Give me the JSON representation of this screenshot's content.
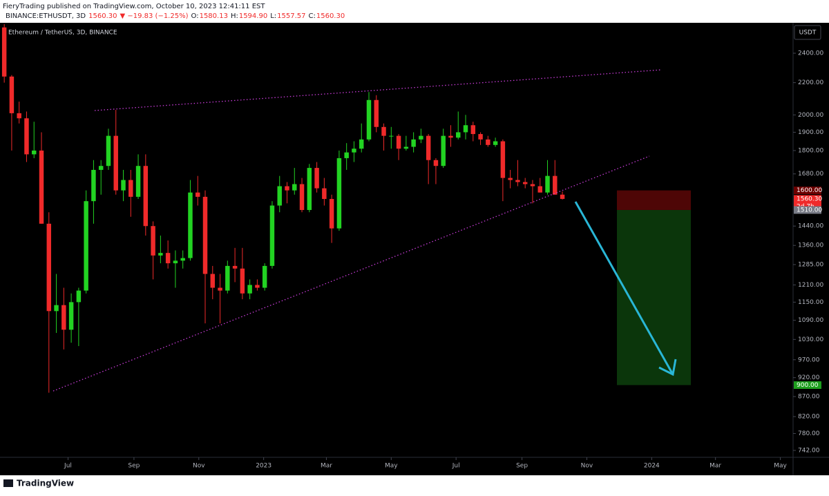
{
  "header": {
    "publisher": "FieryTrading published on TradingView.com, October 10, 2023 12:41:11 EST",
    "symbol": "BINANCE:ETHUSDT, 3D",
    "price": "1560.30",
    "change": "▼ −19.83 (−1.25%)",
    "ohlc": [
      {
        "label": "O:",
        "value": "1580.13"
      },
      {
        "label": "H:",
        "value": "1594.90"
      },
      {
        "label": "L:",
        "value": "1557.57"
      },
      {
        "label": "C:",
        "value": "1560.30"
      }
    ],
    "currency": "USDT",
    "logo": "TradingView"
  },
  "chart_data": {
    "type": "candlestick",
    "title": "Ethereum / TetherUS, 3D, BINANCE",
    "x": [
      "2022-05-02",
      "2022-05-09",
      "2022-05-16",
      "2022-05-23",
      "2022-05-30",
      "2022-06-06",
      "2022-06-13",
      "2022-06-20",
      "2022-06-27",
      "2022-07-04",
      "2022-07-11",
      "2022-07-18",
      "2022-07-25",
      "2022-08-01",
      "2022-08-08",
      "2022-08-15",
      "2022-08-22",
      "2022-08-29",
      "2022-09-05",
      "2022-09-12",
      "2022-09-19",
      "2022-09-26",
      "2022-10-03",
      "2022-10-10",
      "2022-10-17",
      "2022-10-24",
      "2022-10-31",
      "2022-11-07",
      "2022-11-14",
      "2022-11-21",
      "2022-11-28",
      "2022-12-05",
      "2022-12-12",
      "2022-12-19",
      "2022-12-26",
      "2023-01-02",
      "2023-01-09",
      "2023-01-16",
      "2023-01-23",
      "2023-01-30",
      "2023-02-06",
      "2023-02-13",
      "2023-02-20",
      "2023-02-27",
      "2023-03-06",
      "2023-03-13",
      "2023-03-20",
      "2023-03-27",
      "2023-04-03",
      "2023-04-10",
      "2023-04-17",
      "2023-04-24",
      "2023-05-01",
      "2023-05-08",
      "2023-05-15",
      "2023-05-22",
      "2023-05-29",
      "2023-06-05",
      "2023-06-12",
      "2023-06-19",
      "2023-06-26",
      "2023-07-03",
      "2023-07-10",
      "2023-07-17",
      "2023-07-24",
      "2023-07-31",
      "2023-08-07",
      "2023-08-14",
      "2023-08-21",
      "2023-08-28",
      "2023-09-04",
      "2023-09-11",
      "2023-09-18",
      "2023-09-25",
      "2023-10-02",
      "2023-10-09"
    ],
    "open": [
      2590,
      2240,
      2010,
      1980,
      1780,
      1800,
      1450,
      1120,
      1140,
      1060,
      1150,
      1190,
      1550,
      1700,
      1720,
      1880,
      1600,
      1650,
      1570,
      1720,
      1440,
      1320,
      1330,
      1290,
      1300,
      1310,
      1590,
      1570,
      1250,
      1200,
      1190,
      1280,
      1270,
      1180,
      1210,
      1200,
      1280,
      1530,
      1620,
      1600,
      1630,
      1510,
      1710,
      1610,
      1560,
      1430,
      1760,
      1790,
      1810,
      1860,
      2090,
      1930,
      1880,
      1880,
      1810,
      1820,
      1860,
      1880,
      1750,
      1720,
      1880,
      1870,
      1900,
      1940,
      1890,
      1860,
      1830,
      1850,
      1660,
      1650,
      1640,
      1630,
      1620,
      1590,
      1670,
      1580.13
    ],
    "high": [
      2615,
      2250,
      2080,
      2020,
      1960,
      1900,
      1500,
      1250,
      1200,
      1180,
      1200,
      1600,
      1750,
      1750,
      1920,
      2030,
      1700,
      1700,
      1780,
      1780,
      1460,
      1400,
      1380,
      1340,
      1340,
      1650,
      1670,
      1600,
      1280,
      1250,
      1300,
      1350,
      1350,
      1230,
      1230,
      1290,
      1550,
      1670,
      1640,
      1710,
      1660,
      1730,
      1740,
      1660,
      1580,
      1800,
      1840,
      1850,
      1950,
      2140,
      2120,
      1950,
      1930,
      1890,
      1880,
      1900,
      1920,
      1890,
      1760,
      1920,
      1940,
      2020,
      2000,
      1960,
      1900,
      1880,
      1870,
      1860,
      1700,
      1750,
      1660,
      1650,
      1660,
      1750,
      1750,
      1594.9
    ],
    "low": [
      2200,
      1800,
      1950,
      1740,
      1760,
      1450,
      880,
      1050,
      1000,
      1020,
      1010,
      1180,
      1450,
      1580,
      1700,
      1580,
      1550,
      1480,
      1560,
      1400,
      1230,
      1290,
      1270,
      1200,
      1270,
      1300,
      1530,
      1080,
      1160,
      1080,
      1180,
      1220,
      1160,
      1160,
      1190,
      1190,
      1270,
      1500,
      1540,
      1580,
      1500,
      1500,
      1590,
      1530,
      1370,
      1420,
      1700,
      1740,
      1790,
      1850,
      1900,
      1800,
      1810,
      1750,
      1800,
      1790,
      1840,
      1630,
      1630,
      1710,
      1820,
      1860,
      1860,
      1850,
      1830,
      1820,
      1820,
      1550,
      1610,
      1620,
      1610,
      1540,
      1590,
      1580,
      1580,
      1557.57
    ],
    "close": [
      2240,
      2010,
      1980,
      1780,
      1800,
      1450,
      1120,
      1140,
      1060,
      1150,
      1190,
      1550,
      1700,
      1720,
      1880,
      1600,
      1650,
      1570,
      1720,
      1440,
      1320,
      1330,
      1290,
      1300,
      1310,
      1590,
      1570,
      1250,
      1200,
      1190,
      1280,
      1270,
      1180,
      1210,
      1200,
      1280,
      1530,
      1620,
      1600,
      1630,
      1510,
      1710,
      1610,
      1560,
      1430,
      1760,
      1790,
      1810,
      1860,
      2090,
      1930,
      1880,
      1880,
      1810,
      1820,
      1860,
      1880,
      1750,
      1720,
      1880,
      1870,
      1900,
      1940,
      1890,
      1860,
      1830,
      1850,
      1660,
      1650,
      1640,
      1630,
      1620,
      1590,
      1670,
      1580.13,
      1560.3
    ],
    "up_color": "#22d322",
    "down_color": "#f02a2a",
    "xlim": [
      "2022-04-28",
      "2024-05-13"
    ],
    "xticks": [
      {
        "value": "2022-07-01",
        "label": "Jul"
      },
      {
        "value": "2022-09-01",
        "label": "Sep"
      },
      {
        "value": "2022-11-01",
        "label": "Nov"
      },
      {
        "value": "2023-01-01",
        "label": "2023"
      },
      {
        "value": "2023-03-01",
        "label": "Mar"
      },
      {
        "value": "2023-05-01",
        "label": "May"
      },
      {
        "value": "2023-07-01",
        "label": "Jul"
      },
      {
        "value": "2023-09-01",
        "label": "Sep"
      },
      {
        "value": "2023-11-01",
        "label": "Nov"
      },
      {
        "value": "2024-01-01",
        "label": "2024"
      },
      {
        "value": "2024-03-01",
        "label": "Mar"
      },
      {
        "value": "2024-05-01",
        "label": "May"
      }
    ],
    "ylim": [
      727,
      2615
    ],
    "log_scale": true,
    "grid": false,
    "yticks": [
      {
        "value": 2400,
        "label": "2400.00"
      },
      {
        "value": 2200,
        "label": "2200.00"
      },
      {
        "value": 2000,
        "label": "2000.00"
      },
      {
        "value": 1900,
        "label": "1900.00"
      },
      {
        "value": 1800,
        "label": "1800.00"
      },
      {
        "value": 1680,
        "label": "1680.00"
      },
      {
        "value": 1440,
        "label": "1440.00"
      },
      {
        "value": 1360,
        "label": "1360.00"
      },
      {
        "value": 1285,
        "label": "1285.00"
      },
      {
        "value": 1210,
        "label": "1210.00"
      },
      {
        "value": 1150,
        "label": "1150.00"
      },
      {
        "value": 1090,
        "label": "1090.00"
      },
      {
        "value": 1030,
        "label": "1030.00"
      },
      {
        "value": 970,
        "label": "970.00"
      },
      {
        "value": 920,
        "label": "920.00"
      },
      {
        "value": 870,
        "label": "870.00"
      },
      {
        "value": 820,
        "label": "820.00"
      },
      {
        "value": 780,
        "label": "780.00"
      },
      {
        "value": 742,
        "label": "742.00"
      }
    ],
    "position": {
      "stop": 1600,
      "entry": 1510,
      "target": 900,
      "stop_color": "#4e0606",
      "target_color": "#0b360b"
    },
    "price_labels": [
      {
        "value": 1600,
        "label": "1600.00",
        "color": "#6e0000"
      },
      {
        "value": 1560.3,
        "label": "1560.30",
        "color": "#f02a2a",
        "countdown": "2d 7h"
      },
      {
        "value": 1510,
        "label": "1510.00",
        "color": "#787b86"
      },
      {
        "value": 900,
        "label": "900.00",
        "color": "#1e9e1e"
      }
    ]
  }
}
